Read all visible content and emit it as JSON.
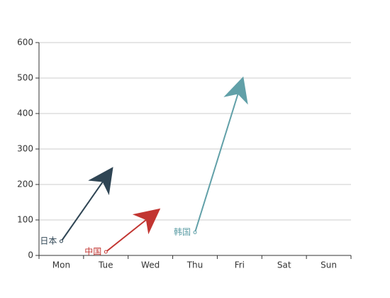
{
  "chart_data": {
    "type": "line",
    "categories": [
      "Mon",
      "Tue",
      "Wed",
      "Thu",
      "Fri",
      "Sat",
      "Sun"
    ],
    "series": [
      {
        "name": "日本",
        "color": "#2f4554",
        "values": [
          40,
          220,
          null,
          null,
          null,
          null,
          null
        ]
      },
      {
        "name": "中国",
        "color": "#c23531",
        "values": [
          null,
          10,
          110,
          null,
          null,
          null,
          null
        ]
      },
      {
        "name": "韩国",
        "color": "#61a0a8",
        "values": [
          null,
          null,
          null,
          65,
          470,
          null,
          null
        ]
      }
    ],
    "ylim": [
      0,
      600
    ],
    "yticks": [
      0,
      100,
      200,
      300,
      400,
      500,
      600
    ],
    "grid": true
  }
}
